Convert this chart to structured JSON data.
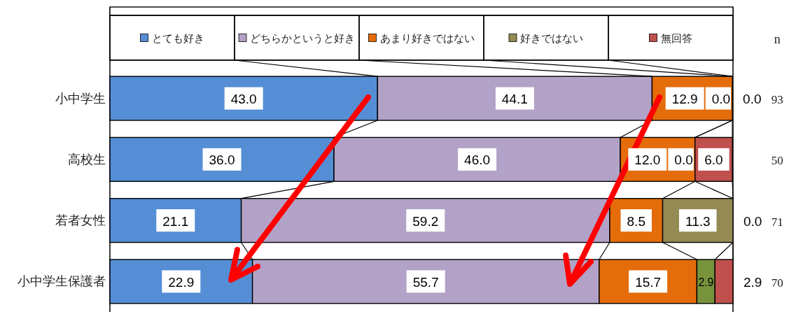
{
  "chart_data": {
    "type": "bar",
    "orientation": "horizontal",
    "stacked": true,
    "legend": "top",
    "categories": [
      "小中学生",
      "高校生",
      "若者女性",
      "小中学生保護者"
    ],
    "series": [
      {
        "name": "とても好き",
        "color": "#558ed5",
        "values": [
          43.0,
          36.0,
          21.1,
          22.9
        ],
        "value_labels": [
          "43.0",
          "36.0",
          "21.1",
          "22.9"
        ]
      },
      {
        "name": "どちらかというと好き",
        "color": "#b3a2c7",
        "values": [
          44.1,
          46.0,
          59.2,
          55.7
        ],
        "value_labels": [
          "44.1",
          "46.0",
          "59.2",
          "55.7"
        ]
      },
      {
        "name": "あまり好きではない",
        "color": "#e46c0a",
        "values": [
          12.9,
          12.0,
          8.5,
          15.7
        ],
        "value_labels": [
          "12.9",
          "12.0",
          "8.5",
          "15.7"
        ]
      },
      {
        "name": "好きではない",
        "colors": [
          null,
          null,
          "#948a54",
          "#77933c"
        ],
        "values": [
          0.0,
          0.0,
          11.3,
          2.9
        ],
        "value_labels": [
          "0.0",
          "0.0",
          "11.3",
          "2.9"
        ]
      },
      {
        "name": "無回答",
        "color": "#c0504d",
        "values": [
          0.0,
          6.0,
          0.0,
          2.9
        ],
        "value_labels": [
          "0.0",
          "6.0",
          "0.0",
          "2.9"
        ]
      }
    ],
    "annotations": [
      "n",
      "93",
      "50",
      "71",
      "70"
    ]
  }
}
